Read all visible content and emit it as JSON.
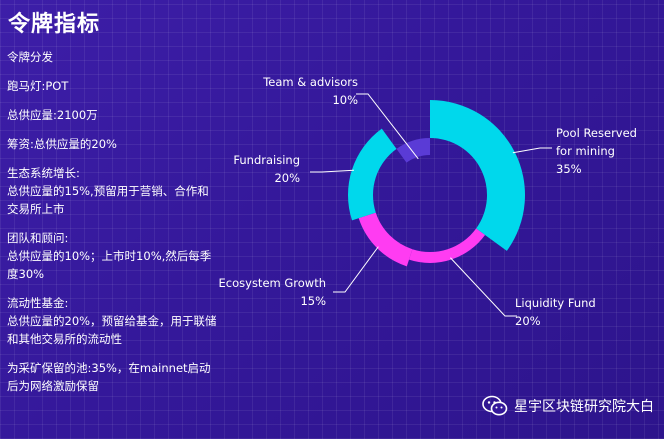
{
  "header": {
    "title": "令牌指标"
  },
  "left_text": [
    [
      "令牌分发"
    ],
    [
      "跑马灯:POT"
    ],
    [
      "总供应量:2100万"
    ],
    [
      "筹资:总供应量的20%"
    ],
    [
      "生态系统增长:",
      "总供应量的15%,预留用于营销、合作和交易所上市"
    ],
    [
      "团队和顾问:",
      "总供应量的10%；上市时10%,然后每季度30%"
    ],
    [
      "流动性基金:",
      "总供应量的20%，预留给基金，用于联储和其他交易所的流动性"
    ],
    [
      "为采矿保留的池:35%，在mainnet启动后为网络激励保留"
    ]
  ],
  "footer": {
    "brand": "星宇区块链研究院大白",
    "icon": "wechat-icon"
  },
  "chart_data": {
    "type": "pie",
    "donut": true,
    "categories": [
      "Pool Reserved for mining",
      "Liquidity Fund",
      "Ecosystem Growth",
      "Fundraising",
      "Team & advisors"
    ],
    "values": [
      35,
      20,
      15,
      20,
      10
    ],
    "labels": [
      [
        "Pool Reserved",
        "for mining",
        "35%"
      ],
      [
        "Liquidity Fund",
        "20%"
      ],
      [
        "Ecosystem Growth",
        "15%"
      ],
      [
        "Fundraising",
        "20%"
      ],
      [
        "Team & advisors",
        "10%"
      ]
    ],
    "colors": [
      "#00d8ec",
      "#ff3cf2",
      "#ff3cf2",
      "#00d8ec",
      "#5a3bd6"
    ]
  }
}
